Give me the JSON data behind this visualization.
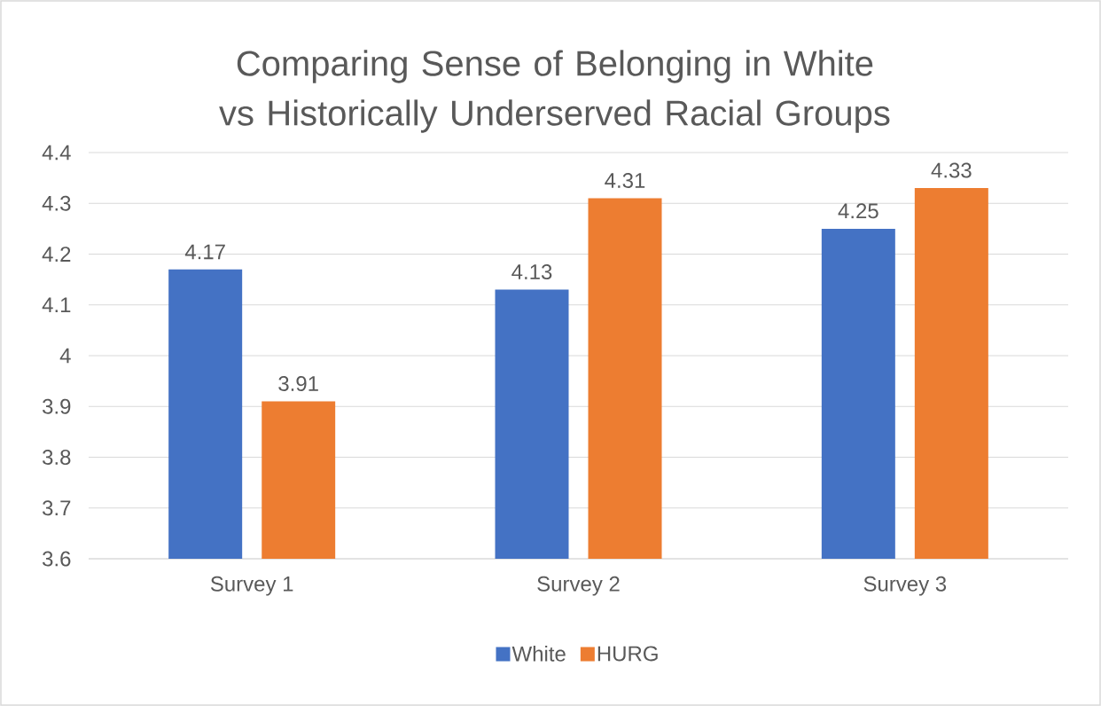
{
  "chart_data": {
    "type": "bar",
    "title": "Comparing Sense of Belonging in White vs Historically Underserved Racial Groups",
    "categories": [
      "Survey 1",
      "Survey 2",
      "Survey 3"
    ],
    "series": [
      {
        "name": "White",
        "color": "#4472c4",
        "values": [
          4.17,
          4.13,
          4.25
        ]
      },
      {
        "name": "HURG",
        "color": "#ed7d31",
        "values": [
          3.91,
          4.31,
          4.33
        ]
      }
    ],
    "ylim": [
      3.6,
      4.4
    ],
    "yticks": [
      3.6,
      3.7,
      3.8,
      3.9,
      4,
      4.1,
      4.2,
      4.3,
      4.4
    ],
    "grid": "y",
    "legend": "bottom",
    "data_labels": true
  }
}
